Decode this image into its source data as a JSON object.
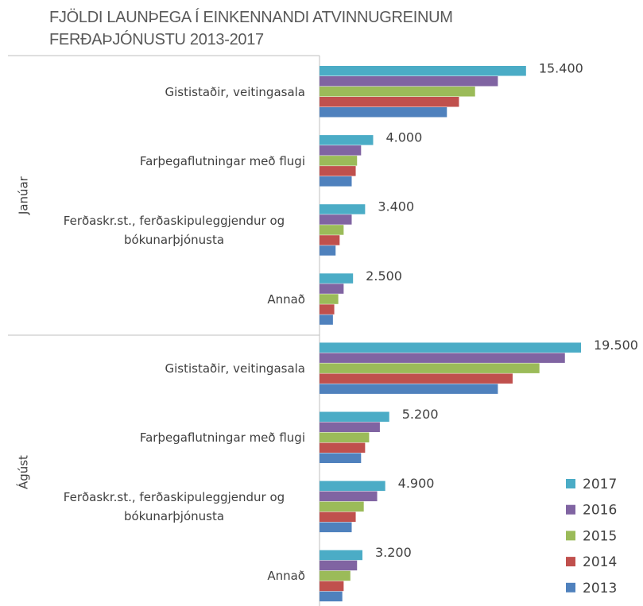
{
  "chart_data": {
    "type": "bar",
    "orientation": "horizontal",
    "title": "FJÖLDI LAUNÞEGA Í EINKENNANDI ATVINNUGREINUM FERÐAÞJÓNUSTU 2013-2017",
    "groups": [
      "Janúar",
      "Ágúst"
    ],
    "categories": [
      "Gististaðir, veitingasala",
      "Farþegaflutningar með flugi",
      "Ferðaskr.st., ferðaskipuleggjendur og bókunarþjónusta",
      "Annað",
      "Gististaðir, veitingasala",
      "Farþegaflutningar með flugi",
      "Ferðaskr.st., ferðaskipuleggjendur og bókunarþjónusta",
      "Annað"
    ],
    "series": [
      {
        "name": "2017",
        "color": "#4bacc6",
        "values": [
          15400,
          4000,
          3400,
          2500,
          19500,
          5200,
          4900,
          3200
        ],
        "value_labels": [
          "15.400",
          "4.000",
          "3.400",
          "2.500",
          "19.500",
          "5.200",
          "4.900",
          "3.200"
        ]
      },
      {
        "name": "2016",
        "color": "#8064a2",
        "values": [
          13300,
          3100,
          2400,
          1800,
          18300,
          4500,
          4300,
          2800
        ]
      },
      {
        "name": "2015",
        "color": "#9bbb59",
        "values": [
          11600,
          2800,
          1800,
          1400,
          16400,
          3700,
          3300,
          2300
        ]
      },
      {
        "name": "2014",
        "color": "#c0504d",
        "values": [
          10400,
          2700,
          1500,
          1100,
          14400,
          3400,
          2700,
          1800
        ]
      },
      {
        "name": "2013",
        "color": "#4f81bd",
        "values": [
          9500,
          2400,
          1200,
          1000,
          13300,
          3100,
          2400,
          1700
        ]
      }
    ],
    "legend": "lower right"
  }
}
